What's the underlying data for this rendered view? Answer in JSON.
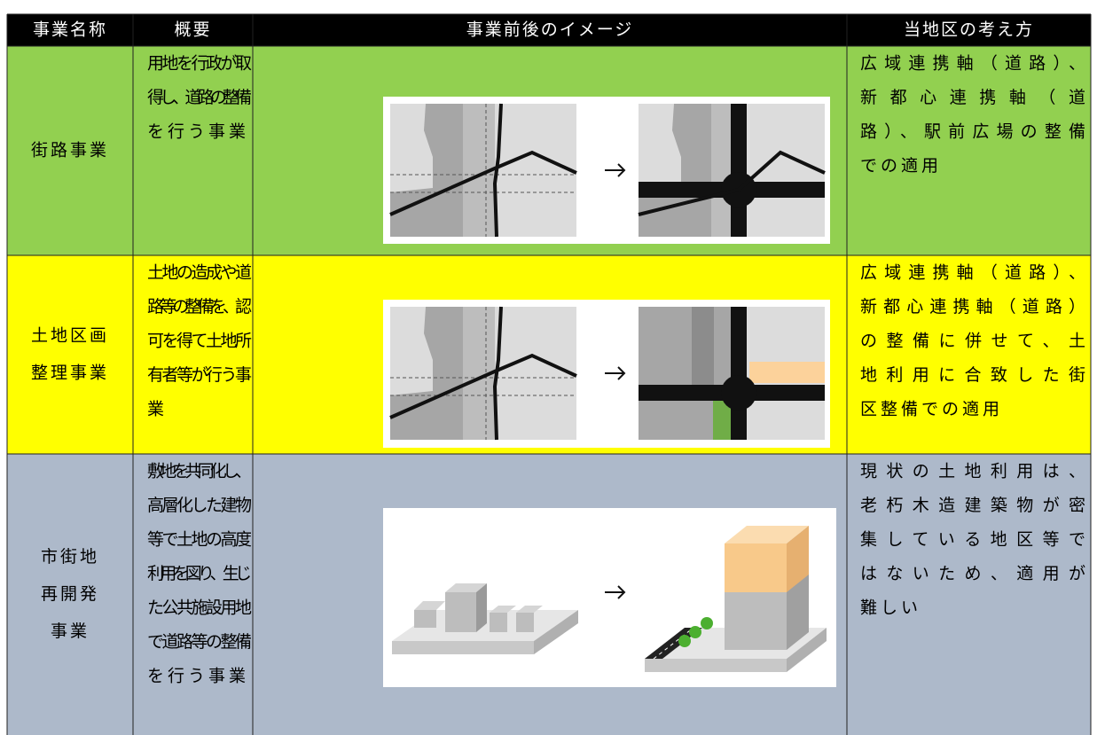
{
  "header": {
    "columns": [
      "事業名称",
      "概要",
      "事業前後のイメージ",
      "当地区の考え方"
    ]
  },
  "rows": [
    {
      "name": [
        "街路事業"
      ],
      "summary": [
        "用地を行政が取",
        "得し、道路の整備",
        "を行う事業"
      ],
      "consideration": [
        "広域連携軸（道路）、",
        "新都心連携軸（道",
        "路）、駅前広場の整備",
        "での適用"
      ]
    },
    {
      "name": [
        "土地区画",
        "整理事業"
      ],
      "summary": [
        "土地の造成や道",
        "路等の整備を、認",
        "可を得て土地所",
        "有者等が行う事",
        "業"
      ],
      "consideration": [
        "広域連携軸（道路）、",
        "新都心連携軸（道路）",
        "の整備に併せて、土",
        "地利用に合致した街",
        "区整備での適用"
      ]
    },
    {
      "name": [
        "市街地",
        "再開発",
        "事業"
      ],
      "summary": [
        "敷地を共同化し、",
        "高層化した建物",
        "等で土地の高度",
        "利用を図り、生じ",
        "た公共施設用地",
        "で道路等の整備",
        "を行う事業"
      ],
      "consideration": [
        "現状の土地利用は、",
        "老朽木造建築物が密",
        "集している地区等で",
        "はないため、適用が",
        "難しい"
      ]
    }
  ]
}
